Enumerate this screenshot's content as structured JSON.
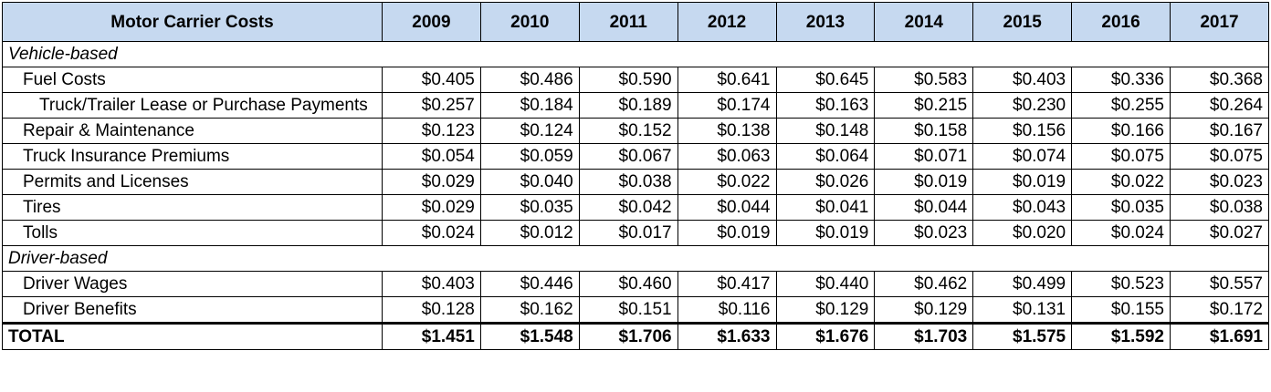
{
  "header": {
    "title": "Motor Carrier Costs",
    "years": [
      "2009",
      "2010",
      "2011",
      "2012",
      "2013",
      "2014",
      "2015",
      "2016",
      "2017"
    ]
  },
  "sections": [
    {
      "title": "Vehicle-based",
      "items": [
        {
          "label": "Fuel Costs",
          "values": [
            "$0.405",
            "$0.486",
            "$0.590",
            "$0.641",
            "$0.645",
            "$0.583",
            "$0.403",
            "$0.336",
            "$0.368"
          ]
        },
        {
          "label": "Truck/Trailer Lease or Purchase Payments",
          "values": [
            "$0.257",
            "$0.184",
            "$0.189",
            "$0.174",
            "$0.163",
            "$0.215",
            "$0.230",
            "$0.255",
            "$0.264"
          ]
        },
        {
          "label": "Repair & Maintenance",
          "values": [
            "$0.123",
            "$0.124",
            "$0.152",
            "$0.138",
            "$0.148",
            "$0.158",
            "$0.156",
            "$0.166",
            "$0.167"
          ]
        },
        {
          "label": "Truck Insurance Premiums",
          "values": [
            "$0.054",
            "$0.059",
            "$0.067",
            "$0.063",
            "$0.064",
            "$0.071",
            "$0.074",
            "$0.075",
            "$0.075"
          ]
        },
        {
          "label": "Permits and Licenses",
          "values": [
            "$0.029",
            "$0.040",
            "$0.038",
            "$0.022",
            "$0.026",
            "$0.019",
            "$0.019",
            "$0.022",
            "$0.023"
          ]
        },
        {
          "label": "Tires",
          "values": [
            "$0.029",
            "$0.035",
            "$0.042",
            "$0.044",
            "$0.041",
            "$0.044",
            "$0.043",
            "$0.035",
            "$0.038"
          ]
        },
        {
          "label": "Tolls",
          "values": [
            "$0.024",
            "$0.012",
            "$0.017",
            "$0.019",
            "$0.019",
            "$0.023",
            "$0.020",
            "$0.024",
            "$0.027"
          ]
        }
      ]
    },
    {
      "title": "Driver-based",
      "items": [
        {
          "label": "Driver Wages",
          "values": [
            "$0.403",
            "$0.446",
            "$0.460",
            "$0.417",
            "$0.440",
            "$0.462",
            "$0.499",
            "$0.523",
            "$0.557"
          ]
        },
        {
          "label": "Driver Benefits",
          "values": [
            "$0.128",
            "$0.162",
            "$0.151",
            "$0.116",
            "$0.129",
            "$0.129",
            "$0.131",
            "$0.155",
            "$0.172"
          ]
        }
      ]
    }
  ],
  "total": {
    "label": "TOTAL",
    "values": [
      "$1.451",
      "$1.548",
      "$1.706",
      "$1.633",
      "$1.676",
      "$1.703",
      "$1.575",
      "$1.592",
      "$1.691"
    ]
  }
}
